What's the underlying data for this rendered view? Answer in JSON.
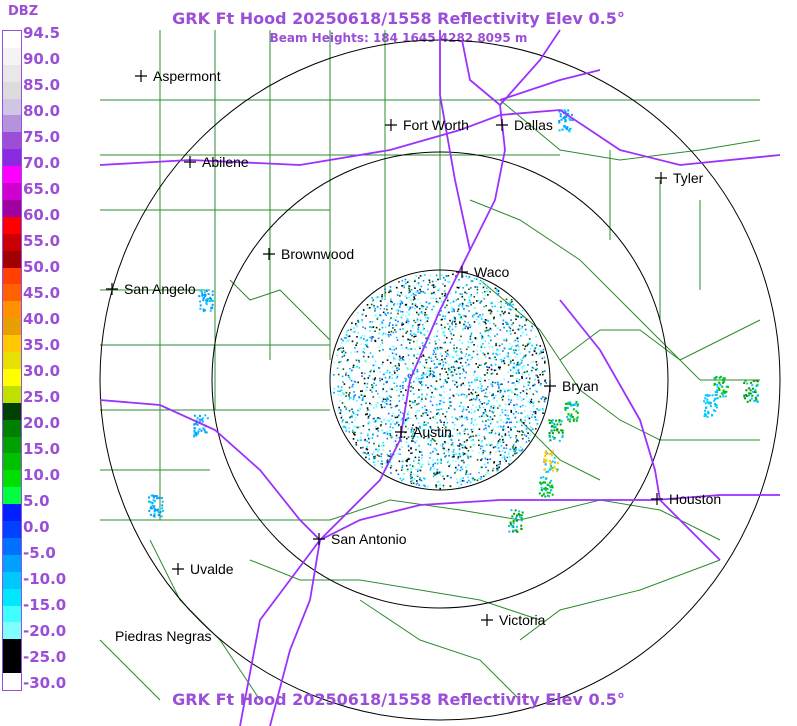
{
  "header": {
    "title": "GRK Ft Hood 20250618/1558 Reflectivity Elev 0.5°",
    "beam_heights": "Beam Heights: 184 1645 4282 8095 m",
    "footer_title": "GRK Ft Hood 20250618/1558 Reflectivity Elev 0.5°"
  },
  "legend": {
    "unit": "DBZ",
    "ticks": [
      "94.5",
      "90.0",
      "85.0",
      "80.0",
      "75.0",
      "70.0",
      "65.0",
      "60.0",
      "55.0",
      "50.0",
      "45.0",
      "40.0",
      "35.0",
      "30.0",
      "25.0",
      "20.0",
      "15.0",
      "10.0",
      "5.0",
      "0.0",
      "-5.0",
      "-10.0",
      "-15.0",
      "-20.0",
      "-25.0",
      "-30.0"
    ],
    "colors": [
      "#ffffff",
      "#f4f4f4",
      "#e8e8e8",
      "#dcdcdc",
      "#cfc6e6",
      "#b592dd",
      "#9b4fd6",
      "#8a2be2",
      "#ff00ff",
      "#d000d0",
      "#a000a0",
      "#ff0000",
      "#cc0000",
      "#a00000",
      "#ff4000",
      "#ff6000",
      "#ff9000",
      "#e8a000",
      "#ffc800",
      "#e8e000",
      "#ffff00",
      "#c0e000",
      "#004000",
      "#008000",
      "#00a000",
      "#00c000",
      "#00e000",
      "#00ff40",
      "#0020ff",
      "#0040ff",
      "#0070ff",
      "#00a0ff",
      "#00c8ff",
      "#00e8ff",
      "#40ffff",
      "#80ffff",
      "#000000",
      "#000000",
      "#ffffff"
    ]
  },
  "cities": [
    "Aspermont",
    "Fort Worth",
    "Dallas",
    "Abilene",
    "Tyler",
    "Brownwood",
    "Waco",
    "San Angelo",
    "Bryan",
    "Austin",
    "Houston",
    "San Antonio",
    "Uvalde",
    "Victoria",
    "Piedras Negras"
  ],
  "colors": {
    "title": "#9b4fd6",
    "county_lines": "#2e8b2e",
    "highways": "#9b30ff",
    "range_rings": "#000000"
  }
}
